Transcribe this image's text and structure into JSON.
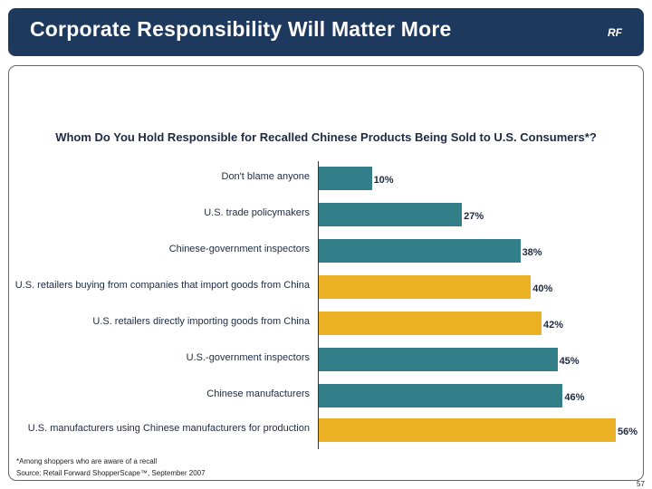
{
  "header": {
    "title": "Corporate Responsibility Will Matter More",
    "logo": "RF"
  },
  "chart_data": {
    "type": "bar",
    "orientation": "horizontal",
    "title": "Whom Do You Hold Responsible for Recalled Chinese Products Being Sold to U.S. Consumers*?",
    "categories": [
      "Don't blame anyone",
      "U.S. trade policymakers",
      "Chinese-government inspectors",
      "U.S. retailers buying from companies that import goods from China",
      "U.S. retailers directly importing goods from China",
      "U.S.-government inspectors",
      "Chinese manufacturers",
      "U.S. manufacturers using Chinese manufacturers for production"
    ],
    "values": [
      10,
      27,
      38,
      40,
      42,
      45,
      46,
      56
    ],
    "value_labels": [
      "10%",
      "27%",
      "38%",
      "40%",
      "42%",
      "45%",
      "46%",
      "56%"
    ],
    "bar_colors": [
      "#327f8a",
      "#327f8a",
      "#327f8a",
      "#ebb024",
      "#ebb024",
      "#327f8a",
      "#327f8a",
      "#ebb024"
    ],
    "xlim": [
      0,
      56
    ],
    "grid": false
  },
  "footnote": "*Among shoppers who are aware of a recall",
  "source": "Source:  Retail Forward ShopperScape™, September 2007",
  "page_number": "57"
}
